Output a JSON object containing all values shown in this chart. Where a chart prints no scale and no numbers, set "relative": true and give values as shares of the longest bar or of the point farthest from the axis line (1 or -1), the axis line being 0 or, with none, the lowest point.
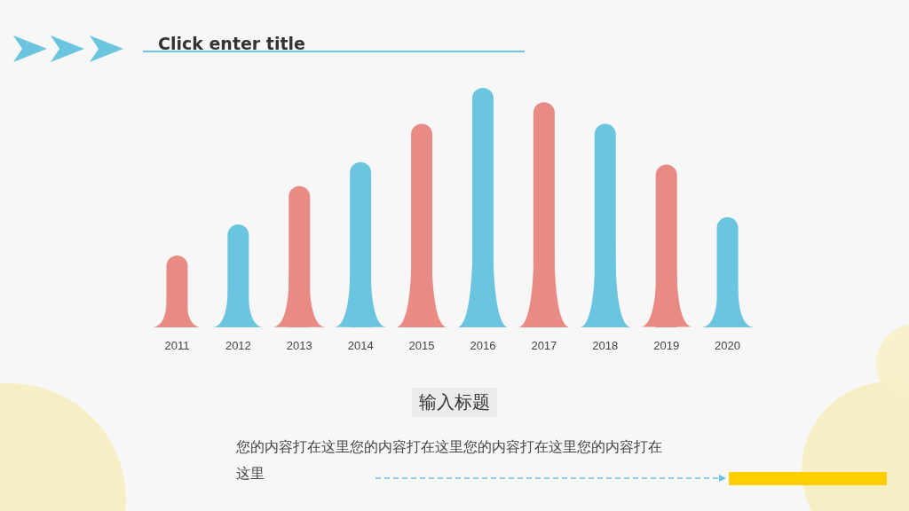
{
  "chart_data": {
    "type": "bar",
    "title": "Click enter title",
    "subtitle": "输入标题",
    "relative": true,
    "categories": [
      "2011",
      "2012",
      "2013",
      "2014",
      "2015",
      "2016",
      "2017",
      "2018",
      "2019",
      "2020"
    ],
    "values": [
      0.3,
      0.43,
      0.59,
      0.69,
      0.85,
      1,
      0.94,
      0.85,
      0.68,
      0.46
    ],
    "colors": [
      "#e88b84",
      "#6cc5df",
      "#e88b84",
      "#6cc5df",
      "#e88b84",
      "#6cc5df",
      "#e88b84",
      "#6cc5df",
      "#e88b84",
      "#6cc5df"
    ],
    "annotations": [
      "您的内容打在这里您的内容打在这里您的内容打在这里您的内容打在这里"
    ]
  }
}
